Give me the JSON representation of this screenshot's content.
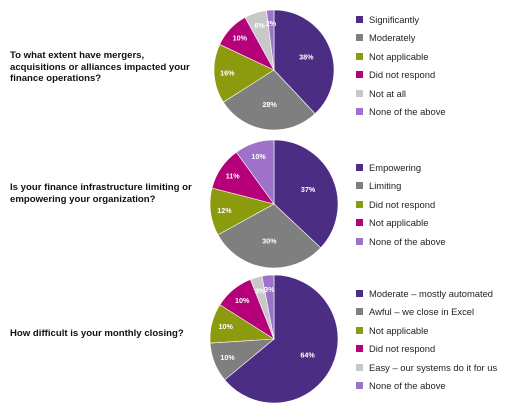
{
  "chart_data": [
    {
      "type": "pie",
      "question": "To what extent have mergers, acquisitions or alliances impacted your finance operations?",
      "start_angle": 0,
      "slices": [
        {
          "label": "Significantly",
          "value": 38,
          "display": "38%",
          "color": "#4B2E83"
        },
        {
          "label": "Moderately",
          "value": 28,
          "display": "28%",
          "color": "#7F7F7F"
        },
        {
          "label": "Not applicable",
          "value": 16,
          "display": "16%",
          "color": "#8C9A0E"
        },
        {
          "label": "Did not respond",
          "value": 10,
          "display": "10%",
          "color": "#B5007A"
        },
        {
          "label": "Not at all",
          "value": 6,
          "display": "6%",
          "color": "#C8C8C8"
        },
        {
          "label": "None of the above",
          "value": 2,
          "display": "2%",
          "color": "#9F72C9"
        }
      ]
    },
    {
      "type": "pie",
      "question": "Is your finance infrastructure limiting or empowering your organization?",
      "start_angle": 0,
      "slices": [
        {
          "label": "Empowering",
          "value": 37,
          "display": "37%",
          "color": "#4B2E83"
        },
        {
          "label": "Limiting",
          "value": 30,
          "display": "30%",
          "color": "#7F7F7F"
        },
        {
          "label": "Did not respond",
          "value": 12,
          "display": "12%",
          "color": "#8C9A0E"
        },
        {
          "label": "Not applicable",
          "value": 11,
          "display": "11%",
          "color": "#B5007A"
        },
        {
          "label": "None of the above",
          "value": 10,
          "display": "10%",
          "color": "#9F72C9"
        }
      ]
    },
    {
      "type": "pie",
      "question": "How difficult is your monthly closing?",
      "start_angle": 0,
      "slices": [
        {
          "label": "Moderate – mostly automated",
          "value": 64,
          "display": "64%",
          "color": "#4B2E83"
        },
        {
          "label": "Awful – we close in Excel",
          "value": 10,
          "display": "10%",
          "color": "#7F7F7F"
        },
        {
          "label": "Not applicable",
          "value": 10,
          "display": "10%",
          "color": "#8C9A0E"
        },
        {
          "label": "Did not respond",
          "value": 10,
          "display": "10%",
          "color": "#B5007A"
        },
        {
          "label": "Easy – our systems do it for us",
          "value": 3,
          "display": "3%",
          "color": "#C8C8C8"
        },
        {
          "label": "None of the above",
          "value": 3,
          "display": "3%",
          "color": "#9F72C9"
        }
      ]
    }
  ]
}
